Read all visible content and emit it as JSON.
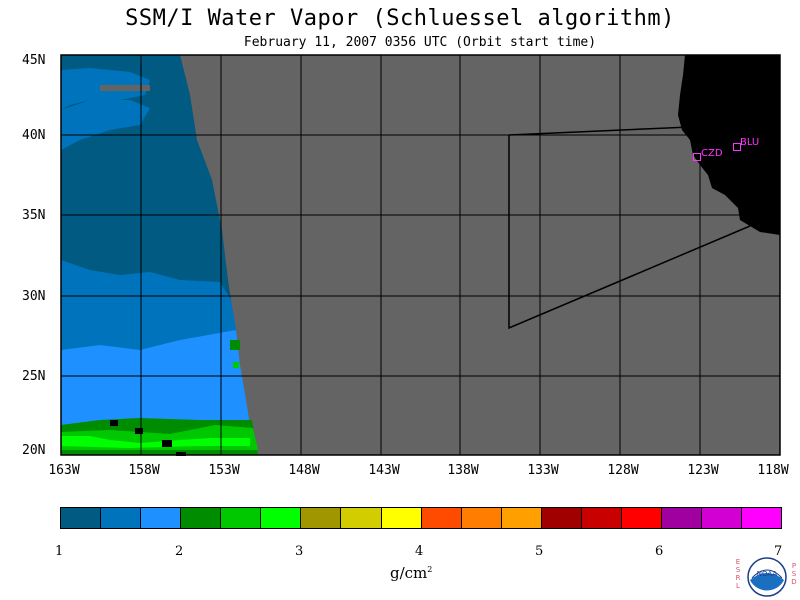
{
  "title": "SSM/I Water Vapor (Schluessel algorithm)",
  "subtitle": "February 11, 2007  0356 UTC  (Orbit start time)",
  "map": {
    "lat_labels": [
      "45N",
      "40N",
      "35N",
      "30N",
      "25N",
      "20N"
    ],
    "lon_labels": [
      "163W",
      "158W",
      "153W",
      "148W",
      "143W",
      "138W",
      "133W",
      "128W",
      "123W",
      "118W"
    ],
    "lat_range": [
      20,
      45
    ],
    "lon_range": [
      -163,
      -118
    ],
    "stations": [
      {
        "label": "CZD"
      },
      {
        "label": "BLU"
      }
    ],
    "colors": {
      "no_data": "#646464",
      "land": "#000000",
      "grid": "#000000",
      "station": "#ff33ff"
    }
  },
  "colorbar": {
    "colors": [
      "#005a82",
      "#0073bd",
      "#1e90ff",
      "#008c00",
      "#00c800",
      "#00ff00",
      "#a09600",
      "#d2cd00",
      "#ffff00",
      "#ff4b00",
      "#ff7d00",
      "#ffa000",
      "#a00000",
      "#c80000",
      "#ff0000",
      "#a000a0",
      "#d200d2",
      "#ff00ff"
    ],
    "tick_labels": [
      "1",
      "2",
      "3",
      "4",
      "5",
      "6",
      "7"
    ],
    "units": "g/cm",
    "units_exponent": "2"
  },
  "logo": {
    "left_letters": [
      "E",
      "S",
      "R",
      "L"
    ],
    "right_letters": [
      "P",
      "S",
      "D"
    ],
    "badge": "NOAA"
  }
}
